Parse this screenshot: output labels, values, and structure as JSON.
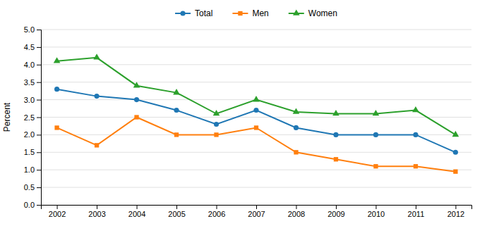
{
  "chart_data": {
    "type": "line",
    "x": [
      2002,
      2003,
      2004,
      2005,
      2006,
      2007,
      2008,
      2009,
      2010,
      2011,
      2012
    ],
    "series": [
      {
        "name": "Total",
        "marker": "circle",
        "values": [
          3.3,
          3.1,
          3.0,
          2.7,
          2.3,
          2.7,
          2.2,
          2.0,
          2.0,
          2.0,
          1.5
        ]
      },
      {
        "name": "Men",
        "marker": "square",
        "values": [
          2.2,
          1.7,
          2.5,
          2.0,
          2.0,
          2.2,
          1.5,
          1.3,
          1.1,
          1.1,
          0.95
        ]
      },
      {
        "name": "Women",
        "marker": "triangle",
        "values": [
          4.1,
          4.2,
          3.4,
          3.2,
          2.6,
          3.0,
          2.65,
          2.6,
          2.6,
          2.7,
          2.0
        ]
      }
    ],
    "ylabel": "Percent",
    "ylim": [
      0.0,
      5.0
    ],
    "yticks": [
      {
        "value": 0,
        "label": "0.0"
      },
      0.5,
      {
        "value": 1,
        "label": "1.0"
      },
      1.5,
      {
        "value": 2,
        "label": "2.0"
      },
      2.5,
      {
        "value": 3,
        "label": "3.0"
      },
      3.5,
      {
        "value": 4,
        "label": "4.0"
      },
      4.5,
      {
        "value": 5,
        "label": "5.0"
      }
    ],
    "xlim": [
      2001.6,
      2012.4
    ],
    "xticks": [
      2002,
      2003,
      2004,
      2005,
      2006,
      2007,
      2008,
      2009,
      2010,
      2011,
      2012
    ],
    "grid": true,
    "legend": "top"
  }
}
